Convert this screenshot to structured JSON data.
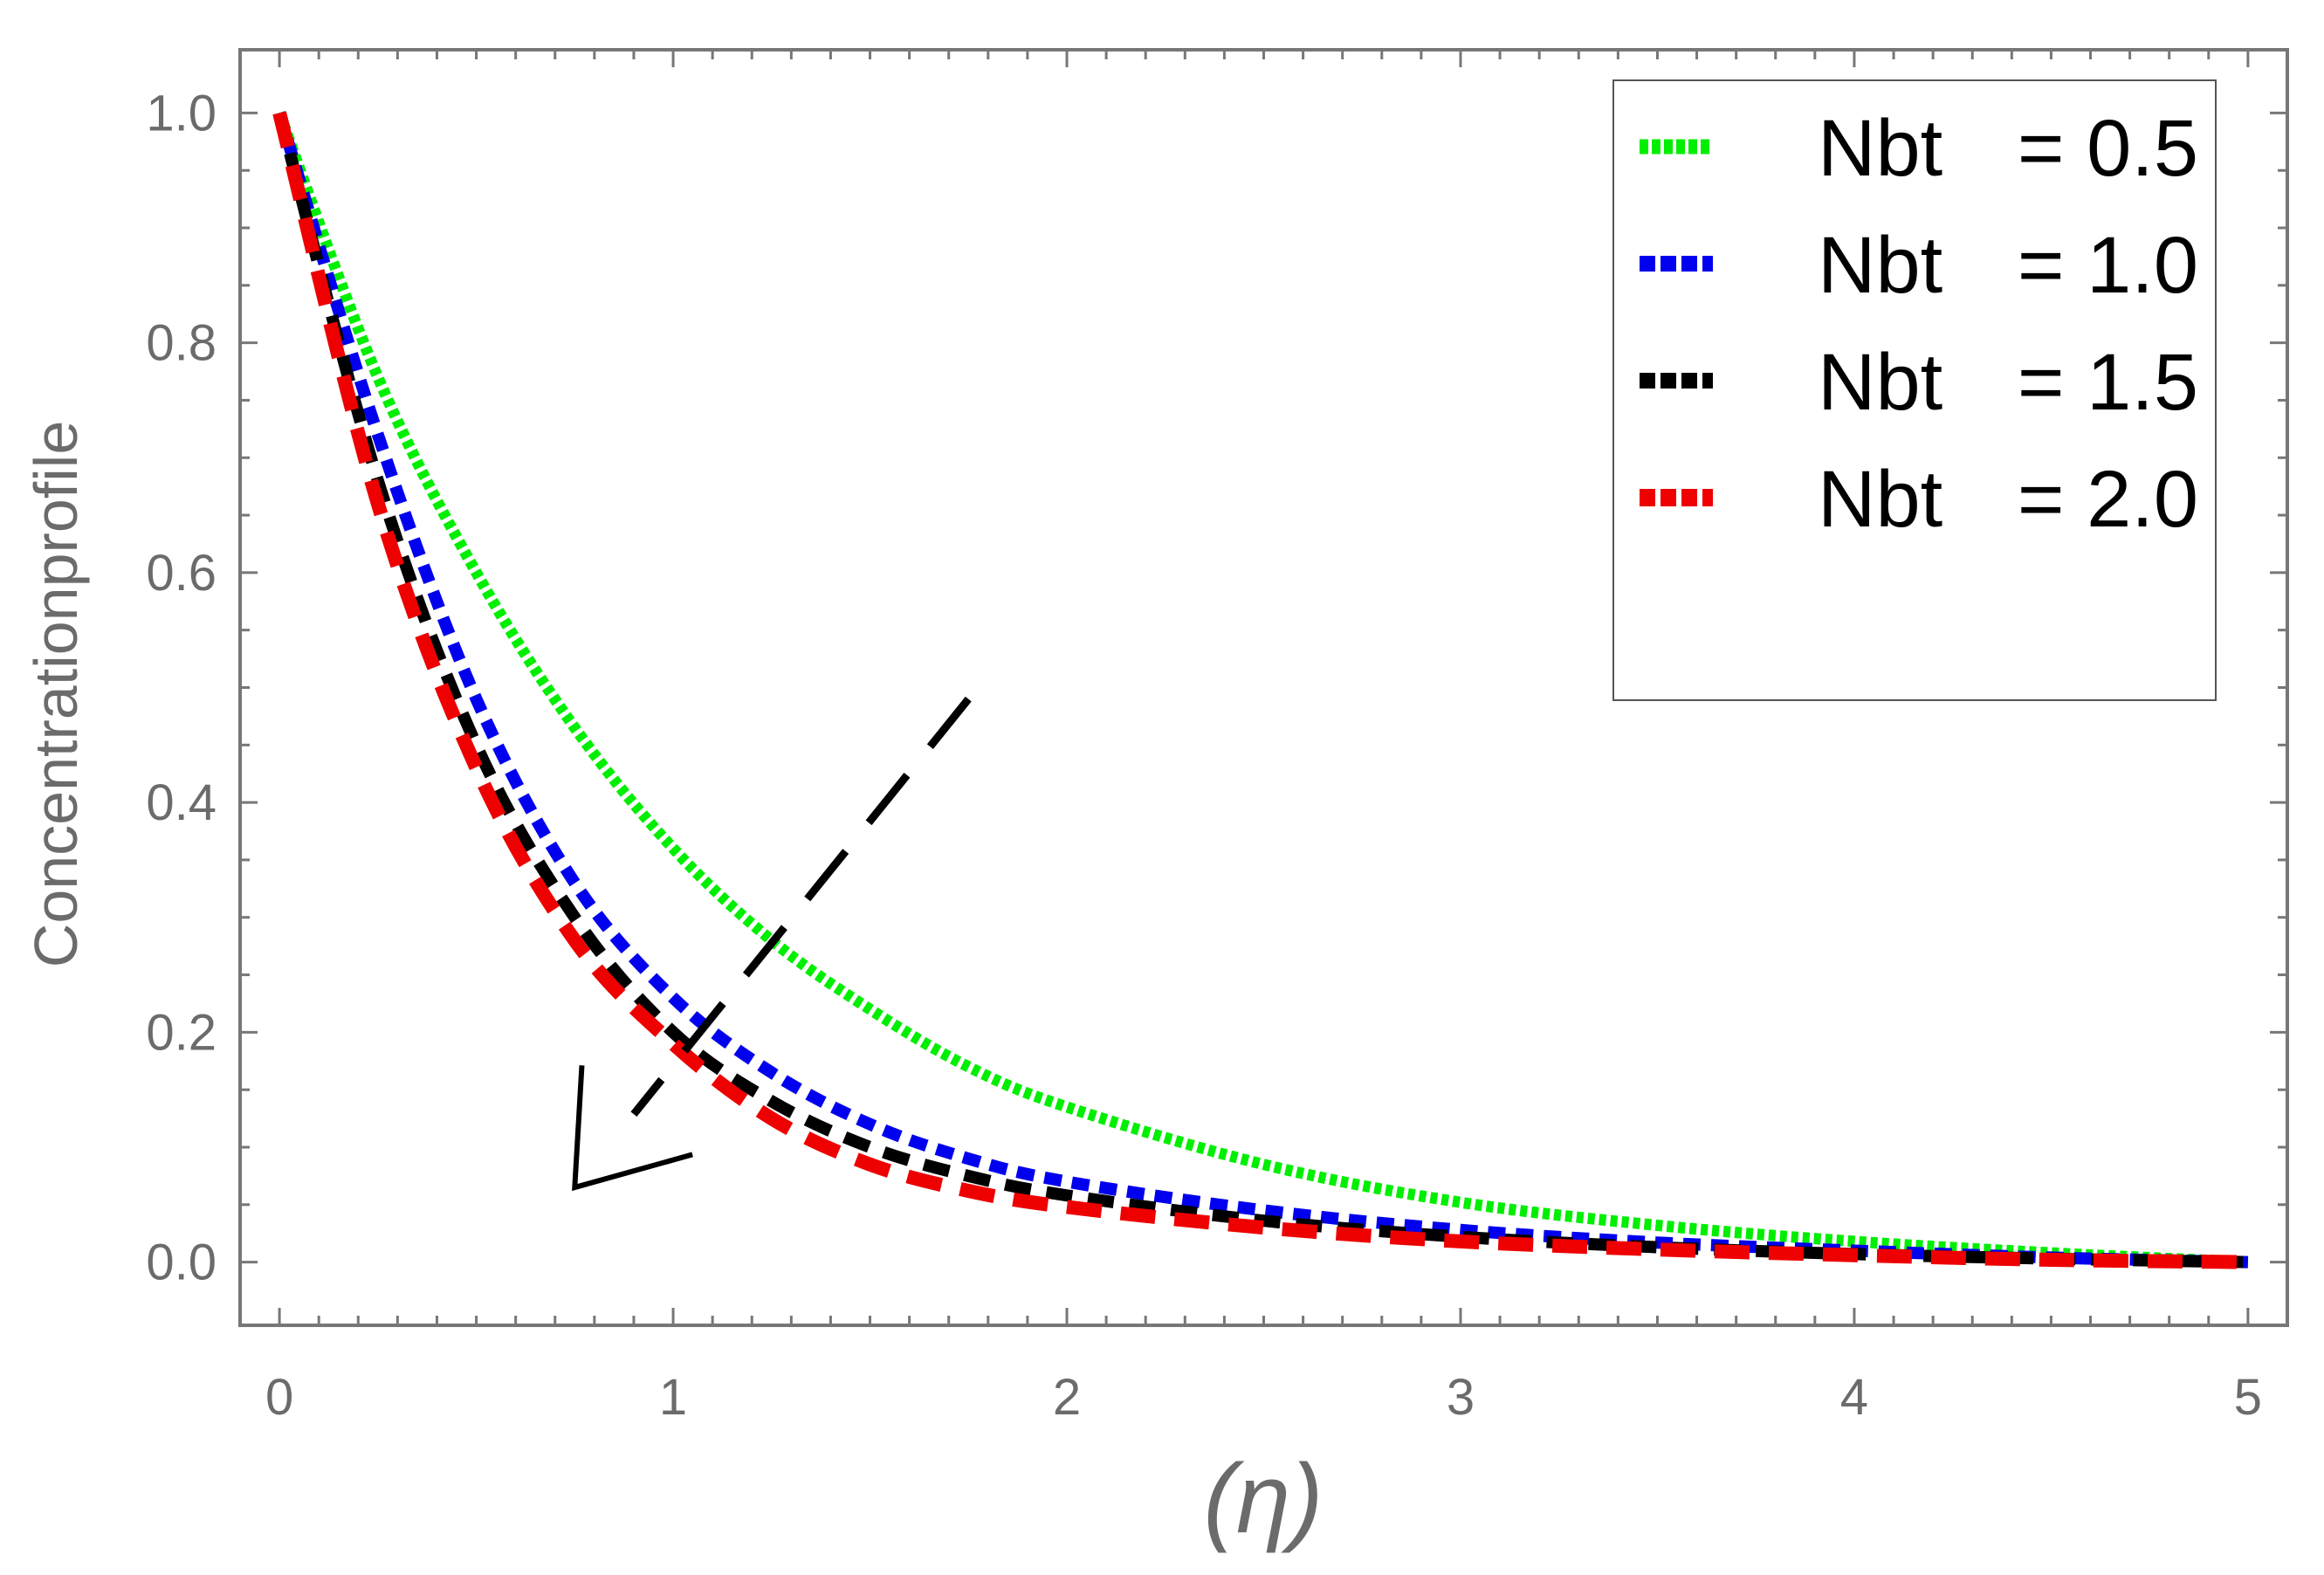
{
  "chart_data": {
    "type": "line",
    "title": "",
    "xlabel": "(η)",
    "ylabel": "Concentrationprofile",
    "xlim": [
      -0.1,
      5.1
    ],
    "ylim": [
      -0.055,
      1.055
    ],
    "xticks": [
      0,
      1,
      2,
      3,
      4,
      5
    ],
    "xtick_labels": [
      "0",
      "1",
      "2",
      "3",
      "4",
      "5"
    ],
    "yticks": [
      0.0,
      0.2,
      0.4,
      0.6,
      0.8,
      1.0
    ],
    "ytick_labels": [
      "0.0",
      "0.2",
      "0.4",
      "0.6",
      "0.8",
      "1.0"
    ],
    "grid": false,
    "legend_position": "top-right",
    "legend_label": "Nbt",
    "x": [
      0,
      0.25,
      0.5,
      0.75,
      1.0,
      1.25,
      1.5,
      1.75,
      2.0,
      2.5,
      3.0,
      3.5,
      4.0,
      4.5,
      5.0
    ],
    "series": [
      {
        "name": "Nbt",
        "value_label": "= 0.5",
        "color": "#00ee00",
        "style": "dotted",
        "values": [
          1.0,
          0.77,
          0.6,
          0.465,
          0.36,
          0.28,
          0.22,
          0.17,
          0.135,
          0.085,
          0.052,
          0.032,
          0.018,
          0.008,
          0.0
        ]
      },
      {
        "name": "Nbt",
        "value_label": "= 1.0",
        "color": "#0000ee",
        "style": "dashed-short",
        "values": [
          1.0,
          0.72,
          0.49,
          0.33,
          0.23,
          0.165,
          0.12,
          0.09,
          0.07,
          0.045,
          0.028,
          0.017,
          0.01,
          0.004,
          0.0
        ]
      },
      {
        "name": "Nbt",
        "value_label": "= 1.5",
        "color": "#000000",
        "style": "dashed",
        "values": [
          1.0,
          0.68,
          0.45,
          0.3,
          0.2,
          0.14,
          0.1,
          0.075,
          0.058,
          0.036,
          0.022,
          0.013,
          0.007,
          0.003,
          0.0
        ]
      },
      {
        "name": "Nbt",
        "value_label": "= 2.0",
        "color": "#ee0000",
        "style": "dashed-long",
        "values": [
          1.0,
          0.66,
          0.43,
          0.28,
          0.19,
          0.125,
          0.085,
          0.062,
          0.048,
          0.03,
          0.018,
          0.011,
          0.006,
          0.002,
          0.0
        ]
      }
    ],
    "annotations": [
      {
        "type": "arrow",
        "meaning": "increasing Nbt decreases concentration profile",
        "from": [
          1.75,
          0.49
        ],
        "to": [
          0.75,
          0.065
        ],
        "style": "dashed",
        "color": "#000000"
      }
    ]
  }
}
